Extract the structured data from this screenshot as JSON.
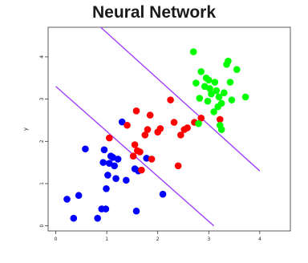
{
  "chart_data": {
    "type": "scatter",
    "title": "Neural Network",
    "xlabel": "",
    "ylabel": "y",
    "xlim": [
      -0.15,
      4.6
    ],
    "ylim": [
      -0.12,
      4.7
    ],
    "xticks": [
      "0",
      "1",
      "2",
      "3",
      "4"
    ],
    "yticks": [
      "0",
      "1",
      "2",
      "3",
      "4"
    ],
    "grid": false,
    "legend": "none",
    "series": [
      {
        "color": "#0000ff",
        "points": [
          [
            0.22,
            0.63
          ],
          [
            0.35,
            0.18
          ],
          [
            0.45,
            0.72
          ],
          [
            0.58,
            1.82
          ],
          [
            0.82,
            0.18
          ],
          [
            0.9,
            0.4
          ],
          [
            0.98,
            0.4
          ],
          [
            0.93,
            1.5
          ],
          [
            0.95,
            1.8
          ],
          [
            0.99,
            0.88
          ],
          [
            1.02,
            1.2
          ],
          [
            1.05,
            1.48
          ],
          [
            1.08,
            1.65
          ],
          [
            1.12,
            1.62
          ],
          [
            1.15,
            1.42
          ],
          [
            1.18,
            1.12
          ],
          [
            1.22,
            1.58
          ],
          [
            1.3,
            2.46
          ],
          [
            1.38,
            1.08
          ],
          [
            1.55,
            1.35
          ],
          [
            1.58,
            0.35
          ],
          [
            1.62,
            1.3
          ],
          [
            1.78,
            1.6
          ],
          [
            2.1,
            0.75
          ]
        ]
      },
      {
        "color": "#ff0000",
        "points": [
          [
            1.05,
            2.08
          ],
          [
            1.4,
            2.38
          ],
          [
            1.52,
            1.65
          ],
          [
            1.55,
            1.92
          ],
          [
            1.58,
            2.72
          ],
          [
            1.6,
            1.78
          ],
          [
            1.65,
            1.75
          ],
          [
            1.68,
            1.32
          ],
          [
            1.75,
            2.15
          ],
          [
            1.8,
            2.28
          ],
          [
            1.85,
            2.62
          ],
          [
            1.88,
            1.58
          ],
          [
            2.0,
            2.22
          ],
          [
            2.05,
            2.3
          ],
          [
            2.25,
            2.98
          ],
          [
            2.32,
            2.45
          ],
          [
            2.4,
            1.42
          ],
          [
            2.45,
            2.15
          ],
          [
            2.52,
            2.28
          ],
          [
            2.58,
            2.32
          ],
          [
            2.72,
            2.45
          ],
          [
            2.85,
            2.55
          ],
          [
            3.22,
            2.52
          ]
        ]
      },
      {
        "color": "#00ff00",
        "points": [
          [
            2.7,
            4.12
          ],
          [
            2.75,
            3.38
          ],
          [
            2.8,
            2.42
          ],
          [
            2.82,
            3.02
          ],
          [
            2.85,
            3.65
          ],
          [
            2.92,
            3.3
          ],
          [
            2.95,
            3.5
          ],
          [
            2.98,
            2.95
          ],
          [
            3.0,
            3.45
          ],
          [
            3.02,
            3.25
          ],
          [
            3.05,
            3.12
          ],
          [
            3.1,
            2.7
          ],
          [
            3.12,
            3.4
          ],
          [
            3.15,
            3.2
          ],
          [
            3.18,
            2.82
          ],
          [
            3.2,
            3.05
          ],
          [
            3.22,
            2.38
          ],
          [
            3.25,
            2.9
          ],
          [
            3.3,
            3.15
          ],
          [
            3.35,
            3.82
          ],
          [
            3.38,
            3.9
          ],
          [
            3.42,
            3.4
          ],
          [
            3.45,
            2.98
          ],
          [
            3.55,
            3.7
          ],
          [
            3.72,
            3.05
          ],
          [
            3.25,
            2.28
          ]
        ]
      }
    ],
    "boundaries": [
      {
        "color": "#a040ff",
        "points": [
          [
            0.0,
            3.3
          ],
          [
            3.1,
            0.0
          ]
        ]
      },
      {
        "color": "#a040ff",
        "points": [
          [
            0.88,
            4.7
          ],
          [
            4.0,
            1.3
          ]
        ]
      }
    ]
  }
}
